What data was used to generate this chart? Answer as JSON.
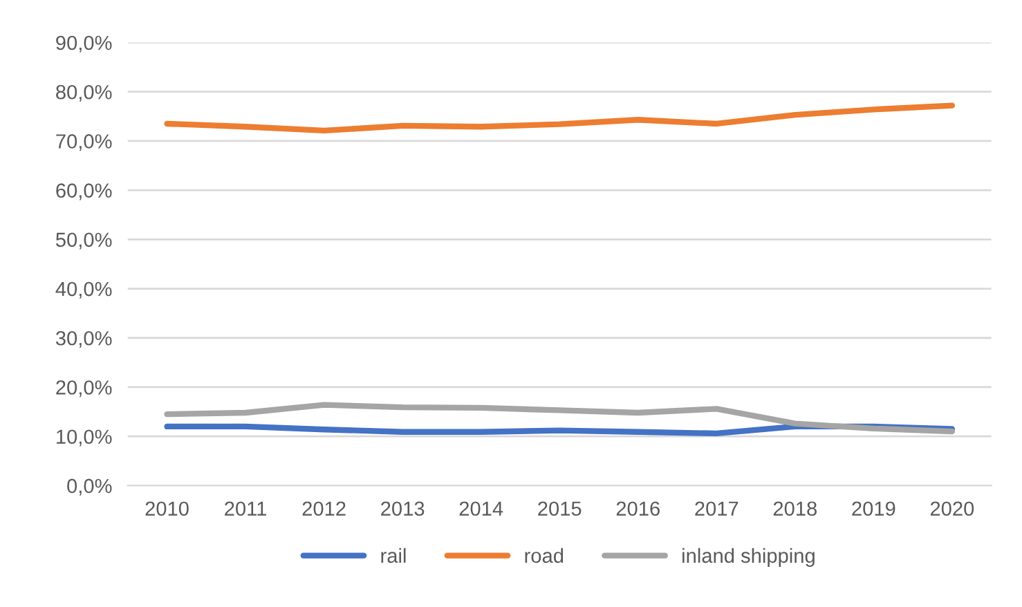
{
  "chart_data": {
    "type": "line",
    "x": [
      2010,
      2011,
      2012,
      2013,
      2014,
      2015,
      2016,
      2017,
      2018,
      2019,
      2020
    ],
    "series": [
      {
        "name": "rail",
        "color": "#4472c4",
        "values": [
          12.0,
          12.0,
          11.4,
          10.9,
          10.9,
          11.2,
          10.9,
          10.6,
          12.0,
          12.0,
          11.5
        ]
      },
      {
        "name": "road",
        "color": "#ed7d31",
        "values": [
          73.5,
          72.9,
          72.1,
          73.1,
          72.9,
          73.4,
          74.3,
          73.5,
          75.3,
          76.4,
          77.2
        ]
      },
      {
        "name": "inland shipping",
        "color": "#a5a5a5",
        "values": [
          14.5,
          14.8,
          16.4,
          15.9,
          15.8,
          15.3,
          14.8,
          15.6,
          12.6,
          11.6,
          11.0
        ]
      }
    ],
    "xlim": [
      2009.5,
      2020.5
    ],
    "xticks": [
      2010,
      2011,
      2012,
      2013,
      2014,
      2015,
      2016,
      2017,
      2018,
      2019,
      2020
    ],
    "ylim": [
      0,
      90
    ],
    "yticks": [
      {
        "value": 0,
        "label": "0,0%"
      },
      {
        "value": 10,
        "label": "10,0%"
      },
      {
        "value": 20,
        "label": "20,0%"
      },
      {
        "value": 30,
        "label": "30,0%"
      },
      {
        "value": 40,
        "label": "40,0%"
      },
      {
        "value": 50,
        "label": "50,0%"
      },
      {
        "value": 60,
        "label": "60,0%"
      },
      {
        "value": 70,
        "label": "70,0%"
      },
      {
        "value": 80,
        "label": "80,0%"
      },
      {
        "value": 90,
        "label": "90,0%"
      }
    ],
    "grid": "y",
    "legend": "bottom",
    "marker": "none",
    "line_style": "solid"
  }
}
